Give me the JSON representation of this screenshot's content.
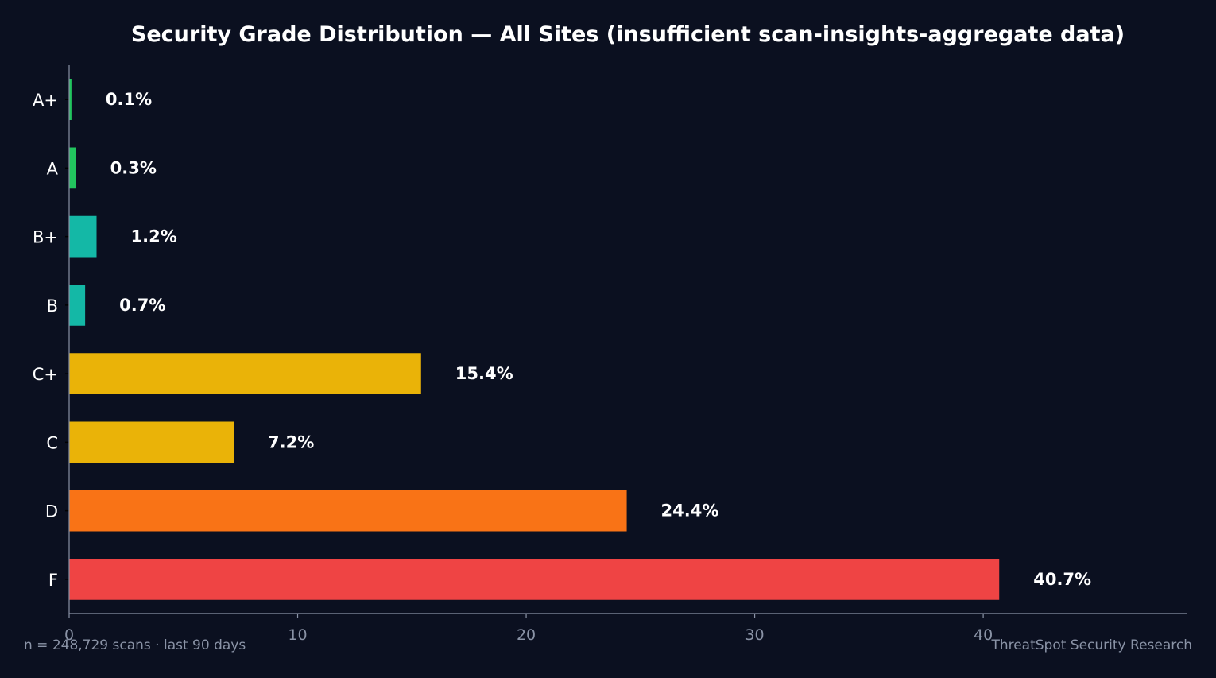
{
  "chart_data": {
    "type": "bar",
    "orientation": "horizontal",
    "title": "Security Grade Distribution — All Sites (insufficient scan-insights-aggregate data)",
    "xlabel": "",
    "ylabel": "",
    "categories": [
      "A+",
      "A",
      "B+",
      "B",
      "C+",
      "C",
      "D",
      "F"
    ],
    "values": [
      0.1,
      0.3,
      1.2,
      0.7,
      15.4,
      7.2,
      24.4,
      40.7
    ],
    "value_labels": [
      "0.1%",
      "0.3%",
      "1.2%",
      "0.7%",
      "15.4%",
      "7.2%",
      "24.4%",
      "40.7%"
    ],
    "bar_colors": [
      "#22c55e",
      "#22c55e",
      "#14b8a6",
      "#14b8a6",
      "#eab308",
      "#eab308",
      "#f97316",
      "#ef4444"
    ],
    "xlim": [
      0,
      48.9
    ],
    "xticks": [
      0,
      10,
      20,
      30,
      40
    ],
    "xtick_labels": [
      "0",
      "10",
      "20",
      "30",
      "40"
    ],
    "grid": false,
    "legend": "none"
  },
  "footer": {
    "note": "n = 248,729 scans · last 90 days",
    "source": "ThreatSpot Security Research"
  },
  "colors": {
    "background": "#0b1020",
    "axis": "#8a93a6",
    "text": "#ffffff",
    "muted": "#8a93a6"
  }
}
